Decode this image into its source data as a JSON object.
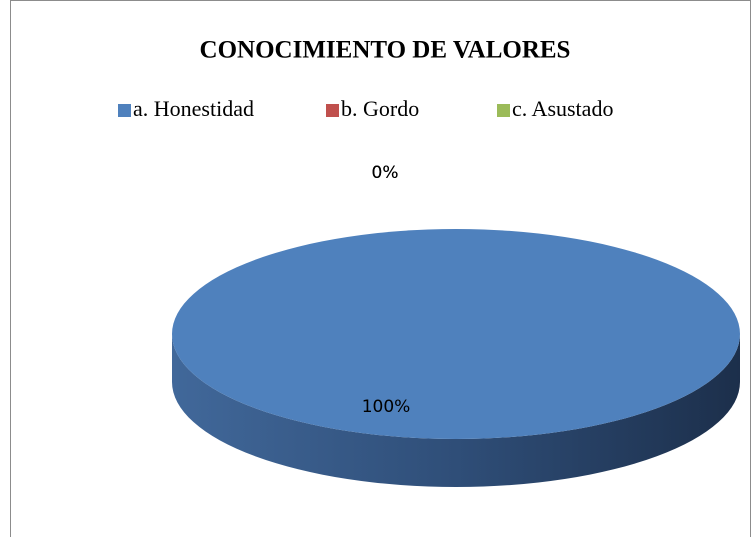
{
  "chart_data": {
    "type": "pie",
    "title": "CONOCIMIENTO DE VALORES",
    "categories": [
      "a. Honestidad",
      "b. Gordo",
      "c. Asustado"
    ],
    "values": [
      100,
      0,
      0
    ],
    "value_labels": [
      "100%",
      "0%",
      "0%"
    ],
    "colors": [
      "#4f81bd",
      "#c0504d",
      "#9bbb59"
    ],
    "legend": "top",
    "3d": true
  }
}
